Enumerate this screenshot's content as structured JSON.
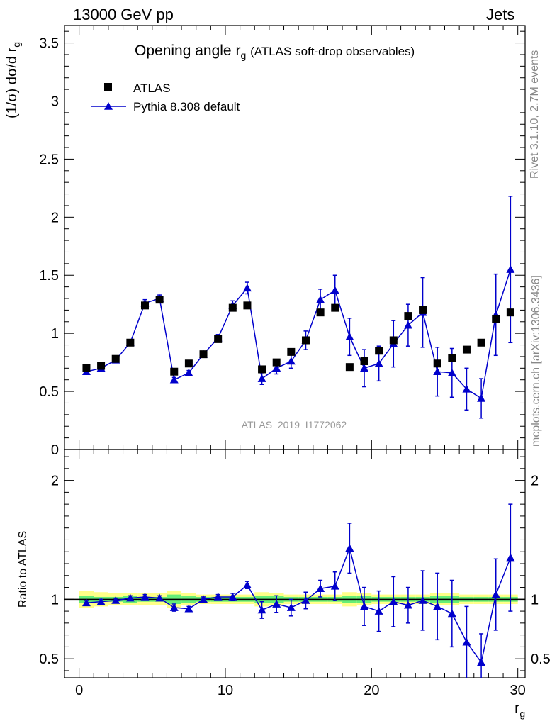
{
  "header": {
    "left": "13000 GeV pp",
    "right": "Jets"
  },
  "side_labels": {
    "rivet": "Rivet 3.1.10,  2.7M events",
    "mcplots": "mcplots.cern.ch [arXiv:1306.3436]"
  },
  "chart_data": {
    "type": "scatter",
    "title": "Opening angle r",
    "title_sub": "g",
    "title_extra": "(ATLAS soft-drop observables)",
    "ylabel_main": "(1/σ) dσ/d r",
    "ylabel_main_sub": "g",
    "ylabel_ratio": "Ratio to ATLAS",
    "xlabel": "r",
    "xlabel_sub": "g",
    "watermark": "ATLAS_2019_I1772062",
    "xlim": [
      -1,
      30.5
    ],
    "ylim_main": [
      0,
      3.65
    ],
    "ylim_ratio": [
      0.34,
      2.26
    ],
    "xticks": [
      "0",
      "10",
      "20",
      "30"
    ],
    "yticks_main": [
      "0",
      "0.5",
      "1",
      "1.5",
      "2",
      "2.5",
      "3",
      "3.5"
    ],
    "yticks_ratio": [
      "0.5",
      "1",
      "2"
    ],
    "legend": {
      "placement": "top-left",
      "data_label": "ATLAS",
      "mc_label": "Pythia 8.308 default"
    },
    "colors": {
      "data": "#000000",
      "mc": "#0000cc",
      "band_inner": "#66ee77",
      "band_outer": "#ffff88"
    },
    "x": [
      0.5,
      1.5,
      2.5,
      3.5,
      4.5,
      5.5,
      6.5,
      7.5,
      8.5,
      9.5,
      10.5,
      11.5,
      12.5,
      13.5,
      14.5,
      15.5,
      16.5,
      17.5,
      18.5,
      19.5,
      20.5,
      21.5,
      22.5,
      23.5,
      24.5,
      25.5,
      26.5,
      27.5,
      28.5,
      29.5
    ],
    "series": [
      {
        "name": "ATLAS",
        "values": [
          0.7,
          0.72,
          0.78,
          0.92,
          1.24,
          1.29,
          0.67,
          0.74,
          0.82,
          0.95,
          1.22,
          1.24,
          0.69,
          0.75,
          0.84,
          0.94,
          1.18,
          1.22,
          0.71,
          0.76,
          0.85,
          0.94,
          1.15,
          1.2,
          0.74,
          0.79,
          0.86,
          0.92,
          1.12,
          1.18
        ],
        "rel_err_inner": [
          0.03,
          0.02,
          0.02,
          0.03,
          0.02,
          0.02,
          0.04,
          0.03,
          0.02,
          0.02,
          0.02,
          0.02,
          0.03,
          0.03,
          0.02,
          0.02,
          0.02,
          0.02,
          0.03,
          0.03,
          0.02,
          0.02,
          0.02,
          0.02,
          0.03,
          0.03,
          0.02,
          0.02,
          0.02,
          0.02
        ],
        "rel_err_outer": [
          0.07,
          0.06,
          0.05,
          0.05,
          0.05,
          0.05,
          0.07,
          0.05,
          0.04,
          0.04,
          0.04,
          0.04,
          0.06,
          0.05,
          0.04,
          0.04,
          0.04,
          0.04,
          0.06,
          0.05,
          0.04,
          0.04,
          0.04,
          0.04,
          0.05,
          0.05,
          0.04,
          0.04,
          0.04,
          0.04
        ]
      },
      {
        "name": "Pythia 8.308 default",
        "values": [
          0.67,
          0.7,
          0.77,
          0.92,
          1.26,
          1.3,
          0.6,
          0.66,
          0.82,
          0.96,
          1.24,
          1.39,
          0.61,
          0.7,
          0.76,
          0.94,
          1.29,
          1.37,
          0.97,
          0.7,
          0.74,
          0.91,
          1.07,
          1.18,
          0.67,
          0.66,
          0.52,
          0.44,
          1.16,
          1.55
        ],
        "err": [
          0.02,
          0.02,
          0.02,
          0.02,
          0.03,
          0.03,
          0.02,
          0.02,
          0.02,
          0.03,
          0.04,
          0.05,
          0.05,
          0.05,
          0.06,
          0.08,
          0.09,
          0.13,
          0.16,
          0.16,
          0.15,
          0.2,
          0.18,
          0.3,
          0.21,
          0.21,
          0.18,
          0.17,
          0.35,
          0.63
        ],
        "ratio": [
          0.97,
          0.98,
          0.99,
          1.01,
          1.02,
          1.01,
          0.93,
          0.92,
          1.0,
          1.02,
          1.02,
          1.12,
          0.91,
          0.96,
          0.93,
          0.99,
          1.09,
          1.11,
          1.43,
          0.94,
          0.9,
          0.98,
          0.95,
          0.99,
          0.94,
          0.88,
          0.64,
          0.47,
          1.04,
          1.35
        ],
        "ratio_err": [
          0.02,
          0.02,
          0.02,
          0.02,
          0.02,
          0.02,
          0.03,
          0.02,
          0.02,
          0.02,
          0.03,
          0.03,
          0.07,
          0.07,
          0.07,
          0.07,
          0.07,
          0.12,
          0.21,
          0.16,
          0.17,
          0.21,
          0.15,
          0.25,
          0.28,
          0.28,
          0.3,
          0.24,
          0.3,
          0.45
        ]
      }
    ]
  }
}
